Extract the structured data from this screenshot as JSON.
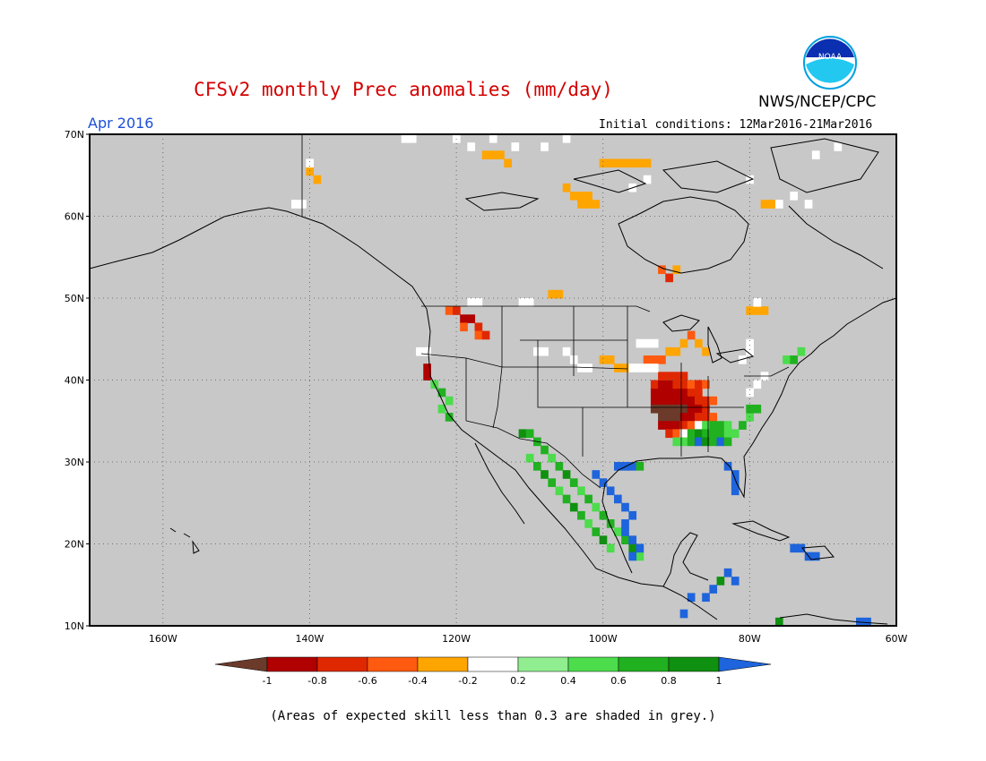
{
  "header": {
    "title": "CFSv2 monthly Prec anomalies (mm/day)",
    "agency": "NWS/NCEP/CPC",
    "logo_text": "NOAA",
    "period": "Apr 2016",
    "initial_conditions": "Initial conditions: 12Mar2016-21Mar2016"
  },
  "map": {
    "lat_range": [
      10,
      70
    ],
    "lon_range": [
      -170,
      -60
    ],
    "lat_ticks": [
      "10N",
      "20N",
      "30N",
      "40N",
      "50N",
      "60N",
      "70N"
    ],
    "lon_ticks": [
      "160W",
      "140W",
      "120W",
      "100W",
      "80W",
      "60W"
    ],
    "background_skill_color": "#c8c8c8",
    "gridlines": "dotted"
  },
  "colorbar": {
    "labels": [
      "-1",
      "-0.8",
      "-0.6",
      "-0.4",
      "-0.2",
      "0.2",
      "0.4",
      "0.6",
      "0.8",
      "1"
    ],
    "colors": [
      "#6b3a2a",
      "#b00000",
      "#e02800",
      "#ff5a10",
      "#ffa500",
      "#ffffff",
      "#90ee90",
      "#4cdc4c",
      "#20b020",
      "#109010",
      "#1e64dc"
    ]
  },
  "footnote": "(Areas of expected skill less than 0.3 are shaded in grey.)"
}
